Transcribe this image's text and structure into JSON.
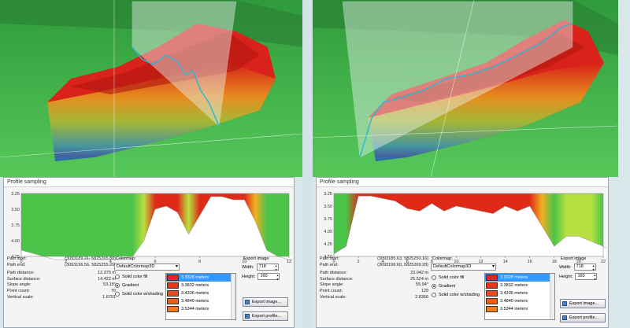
{
  "left": {
    "dialog_title": "Profile sampling",
    "y_ticks": [
      "3.25",
      "3.50",
      "3.75",
      "4.00",
      "4.25"
    ],
    "x_ticks": [
      "0",
      "2",
      "4",
      "6",
      "8",
      "10",
      "12"
    ],
    "info": [
      {
        "k": "Path start:",
        "v": "(3093189.21, 5825265.08)"
      },
      {
        "k": "Path end:",
        "v": "(3093196.56, 5825255.26)"
      },
      {
        "k": "Path distance:",
        "v": "12.375 m"
      },
      {
        "k": "Surface distance:",
        "v": "14.422 m"
      },
      {
        "k": "Slope angle:",
        "v": "53.18°"
      },
      {
        "k": "Point count:",
        "v": "70"
      },
      {
        "k": "Vertical scale:",
        "v": "1.6791"
      }
    ],
    "profile_x": [
      0,
      0.5,
      1,
      1.5,
      2,
      2.5,
      3,
      3.5,
      4,
      4.5,
      5,
      5.5,
      6,
      6.5,
      7,
      7.5,
      8,
      8.5,
      9,
      9.5,
      10,
      10.5,
      11,
      11.5,
      12,
      12.375
    ],
    "profile_y": [
      4.15,
      4.2,
      4.25,
      4.3,
      4.3,
      4.3,
      4.28,
      4.3,
      4.3,
      4.28,
      4.25,
      4.0,
      3.5,
      3.45,
      3.55,
      3.9,
      3.6,
      3.3,
      3.3,
      3.35,
      3.35,
      3.7,
      4.15,
      4.25,
      4.3,
      4.3
    ]
  },
  "right": {
    "dialog_title": "Profile sampling",
    "y_ticks": [
      "3.25",
      "3.50",
      "3.75",
      "4.00",
      "4.25",
      "4.50"
    ],
    "x_ticks": [
      "0",
      "2",
      "4",
      "6",
      "8",
      "10",
      "12",
      "14",
      "16",
      "18",
      "20",
      "22"
    ],
    "info": [
      {
        "k": "Path start:",
        "v": "(3093185.63, 5825250.16)"
      },
      {
        "k": "Path end:",
        "v": "(3093196.60, 5825269.28)"
      },
      {
        "k": "Path distance:",
        "v": "23.042 m"
      },
      {
        "k": "Surface distance:",
        "v": "25.524 m"
      },
      {
        "k": "Slope angle:",
        "v": "55.94°"
      },
      {
        "k": "Point count:",
        "v": "129"
      },
      {
        "k": "Vertical scale:",
        "v": "2.8366"
      }
    ],
    "profile_x": [
      0,
      1,
      2,
      3,
      4,
      5,
      6,
      7,
      8,
      9,
      10,
      11,
      12,
      13,
      14,
      15,
      16,
      17,
      18,
      19,
      20,
      21,
      22,
      23
    ],
    "profile_y": [
      4.45,
      4.3,
      3.3,
      3.3,
      3.35,
      3.4,
      3.55,
      3.6,
      3.45,
      3.6,
      3.5,
      3.55,
      3.6,
      3.65,
      3.5,
      3.6,
      3.5,
      3.9,
      4.3,
      4.1,
      4.1,
      4.2,
      4.3,
      4.45
    ]
  },
  "common": {
    "colormap_label": "Colormap:",
    "colormap_value": "DefaultColormap3D",
    "radio_solid": "Solid color fill",
    "radio_gradient": "Gradient",
    "radio_shading": "Solid color w/shading",
    "legend": [
      {
        "label": "3.3328 meters",
        "color": "#e8241c"
      },
      {
        "label": "3.3832 meters",
        "color": "#e8341c"
      },
      {
        "label": "3.4336 meters",
        "color": "#eb4a1c"
      },
      {
        "label": "3.4840 meters",
        "color": "#ee5f1c"
      },
      {
        "label": "3.5344 meters",
        "color": "#f07a1c"
      }
    ],
    "export_label": "Export image",
    "width_label": "Width:",
    "width_value": "718",
    "height_label": "Height:",
    "height_value": "160",
    "export_image_button": "Export image...",
    "export_profile_button": "Export profile...",
    "accent": "#3399ff",
    "profile_line": "#2bb5d8"
  }
}
